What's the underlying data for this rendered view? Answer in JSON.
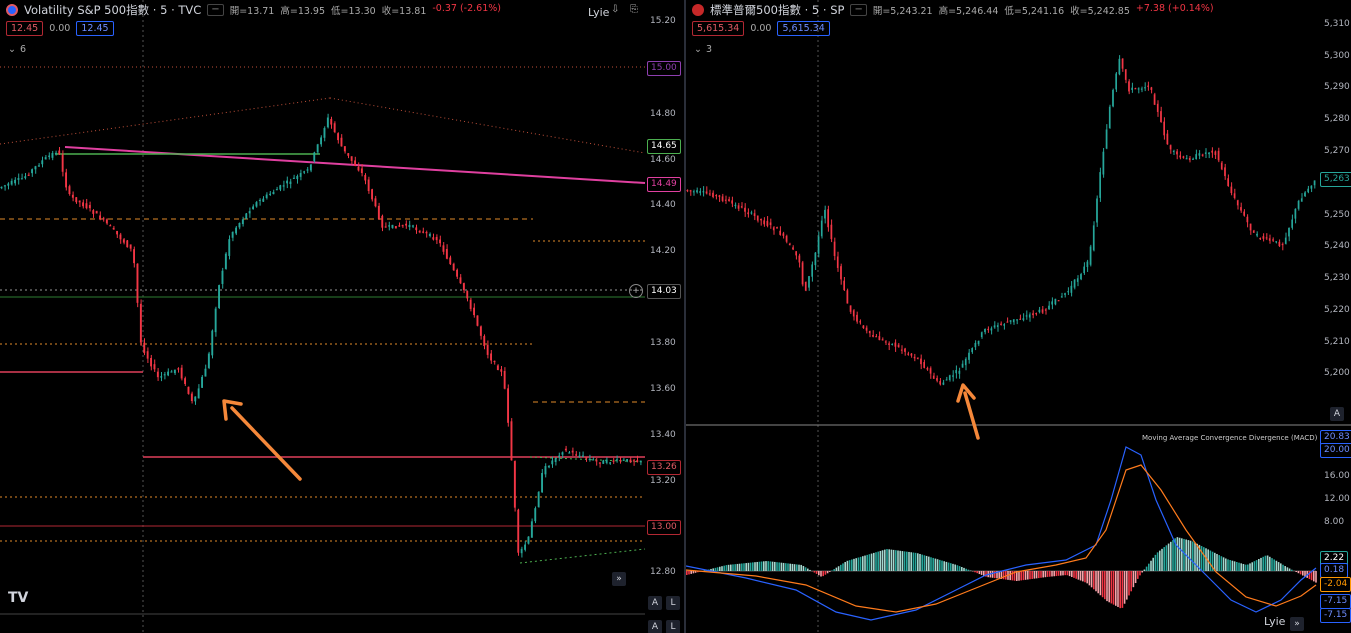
{
  "left": {
    "title": "Volatility S&P 500指數 · 5 · TVC",
    "ohlc": {
      "open": "開=13.71",
      "high": "高=13.95",
      "low": "低=13.30",
      "close": "收=13.81",
      "change": "-0.37 (-2.61%)"
    },
    "bid": "12.45",
    "spread": "0.00",
    "ask": "12.45",
    "indicator_count": "6",
    "watermark": "Lyie",
    "axis_ticks": [
      "15.20",
      "14.80",
      "14.60",
      "14.40",
      "14.20",
      "13.80",
      "13.60",
      "13.40",
      "13.20",
      "12.80"
    ],
    "tags": [
      {
        "label": "15.00",
        "color": "#8e3fb0"
      },
      {
        "label": "14.65",
        "color": "#4caf50"
      },
      {
        "label": "14.49",
        "color": "#e040a0"
      },
      {
        "label": "14.03",
        "color": "#d1d4dc"
      },
      {
        "label": "13.26",
        "color": "#e05a64"
      },
      {
        "label": "13.00",
        "color": "#e05a64"
      }
    ],
    "buttons": {
      "auto": "A",
      "log": "L",
      "forward": "»"
    }
  },
  "right": {
    "title": "標準普爾500指數 · 5 · SP",
    "ohlc": {
      "open": "開=5,243.21",
      "high": "高=5,246.44",
      "low": "低=5,241.16",
      "close": "收=5,242.85",
      "change": "+7.38 (+0.14%)"
    },
    "bid": "5,615.34",
    "spread": "0.00",
    "ask": "5,615.34",
    "indicator_count": "3",
    "watermark": "Lyie",
    "axis_ticks": [
      "5,310",
      "5,300",
      "5,290",
      "5,280",
      "5,270",
      "5,250",
      "5,240",
      "5,230",
      "5,220",
      "5,210",
      "5,200"
    ],
    "tags": [
      {
        "label": "5,263",
        "color": "#26a69a"
      }
    ],
    "macd": {
      "title": "Moving Average Convergence Divergence (MACD)",
      "axis_ticks": [
        "16.00",
        "12.00",
        "8.00"
      ],
      "tags": [
        {
          "label": "20.83",
          "color": "#2962ff"
        },
        {
          "label": "20.00",
          "color": "#2962ff"
        },
        {
          "label": "2.22",
          "color": "#26a69a"
        },
        {
          "label": "0.18",
          "color": "#2962ff"
        },
        {
          "label": "-2.04",
          "color": "#ff9800"
        },
        {
          "label": "-7.15",
          "color": "#2962ff"
        },
        {
          "label": "-7.15",
          "color": "#2962ff"
        }
      ]
    },
    "buttons": {
      "auto": "A",
      "forward": "»"
    }
  },
  "colors": {
    "up": "#26a69a",
    "down": "#f23645",
    "arrow": "#f5883a",
    "trend": "#e040a0"
  }
}
